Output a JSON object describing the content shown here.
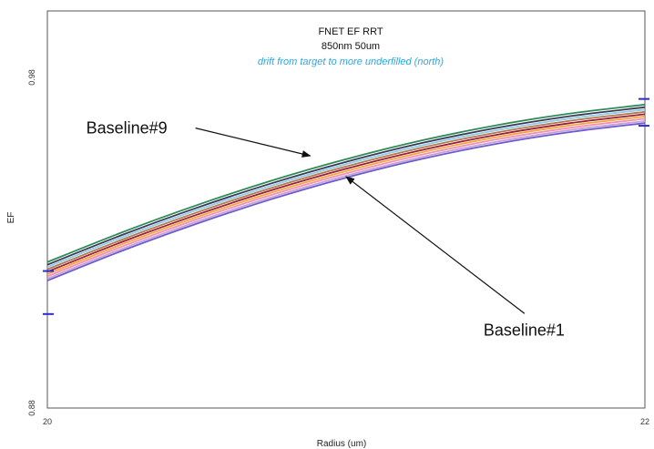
{
  "chart_data": {
    "type": "line",
    "title": [
      "FNET EF RRT",
      "850nm 50um"
    ],
    "subtitle": "drift from target to more underfilled (north)",
    "subtitle_color": "#29a8e0",
    "xlabel": "Radius (um)",
    "ylabel": "EF",
    "x_tick_labels": [
      "20",
      "22"
    ],
    "y_tick_labels": [
      "0.88",
      "0.98"
    ],
    "xlim": [
      20,
      22
    ],
    "ylim": [
      0.88,
      1.0
    ],
    "grid": false,
    "x": [
      20,
      20.25,
      20.5,
      20.75,
      21,
      21.25,
      21.5,
      21.75,
      22
    ],
    "series": [
      {
        "color": "#2e8b57",
        "values": [
          0.9241,
          0.9331,
          0.9413,
          0.9487,
          0.9552,
          0.9608,
          0.9654,
          0.969,
          0.9717
        ]
      },
      {
        "color": "#3a3a55",
        "values": [
          0.9233,
          0.9323,
          0.9405,
          0.9479,
          0.9544,
          0.96,
          0.9646,
          0.9682,
          0.9709
        ]
      },
      {
        "color": "#8ec9e8",
        "values": [
          0.9226,
          0.9316,
          0.9398,
          0.9472,
          0.9537,
          0.9593,
          0.9639,
          0.9675,
          0.9702
        ]
      },
      {
        "color": "#b07a4a",
        "values": [
          0.9219,
          0.9309,
          0.9391,
          0.9465,
          0.953,
          0.9586,
          0.9632,
          0.9668,
          0.9695
        ]
      },
      {
        "color": "#9b1d3a",
        "values": [
          0.9212,
          0.9302,
          0.9384,
          0.9458,
          0.9523,
          0.9579,
          0.9625,
          0.9661,
          0.9688
        ]
      },
      {
        "color": "#f2a53c",
        "values": [
          0.9205,
          0.9295,
          0.9377,
          0.9451,
          0.9516,
          0.9572,
          0.9618,
          0.9654,
          0.9681
        ]
      },
      {
        "color": "#f48fb1",
        "values": [
          0.9198,
          0.9288,
          0.937,
          0.9444,
          0.9509,
          0.9565,
          0.9611,
          0.9647,
          0.9674
        ]
      },
      {
        "color": "#c3a2d8",
        "values": [
          0.9191,
          0.9281,
          0.9363,
          0.9437,
          0.9502,
          0.9558,
          0.9604,
          0.964,
          0.9667
        ]
      },
      {
        "color": "#6a5acd",
        "values": [
          0.9185,
          0.9275,
          0.9357,
          0.9431,
          0.9496,
          0.9552,
          0.9598,
          0.9634,
          0.9661
        ]
      }
    ],
    "target_marks": {
      "color": "#2b2bd4",
      "left_y": [
        0.9214,
        0.9084
      ],
      "right_y": [
        0.9734,
        0.9653
      ]
    },
    "annotations": [
      {
        "text": "Baseline#9",
        "point_to": [
          20.88,
          0.9562
        ],
        "label_at": [
          20.13,
          0.9646
        ]
      },
      {
        "text": "Baseline#1",
        "point_to": [
          21.0,
          0.9499
        ],
        "label_at": [
          21.46,
          0.9036
        ]
      }
    ]
  }
}
